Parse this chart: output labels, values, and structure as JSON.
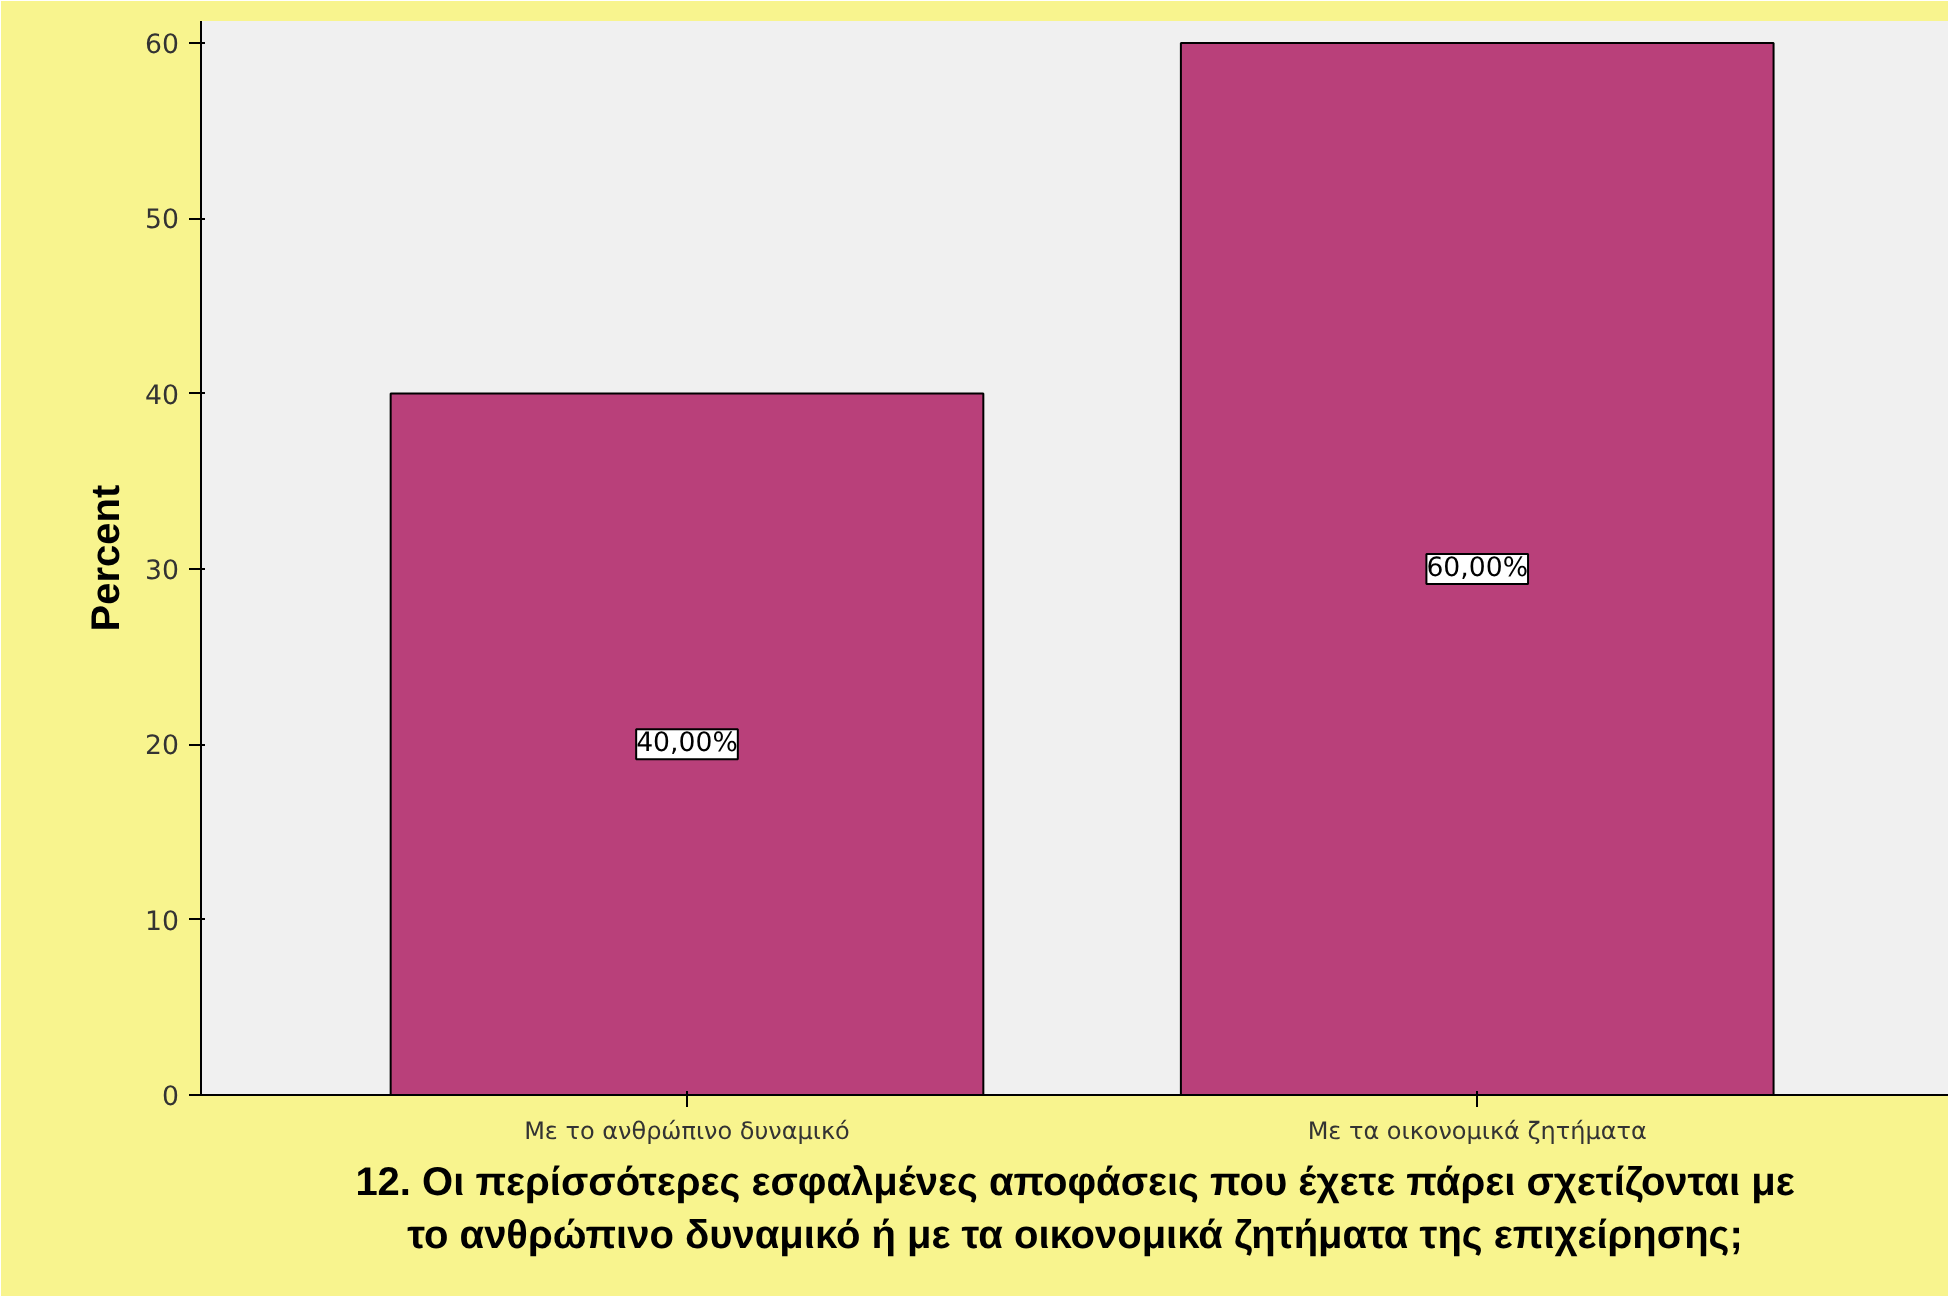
{
  "chart_data": {
    "type": "bar",
    "xlabel": "12. Οι περίσσότερες εσφαλμένες αποφάσεις που έχετε πάρει σχετίζονται με\nτο ανθρώπινο δυναμικό ή με τα οικονομικά ζητήματα της επιχείρησης;",
    "ylabel": "Percent",
    "categories": [
      "Με το ανθρώπινο δυναμικό",
      "Με τα οικονομικά ζητήματα"
    ],
    "values": [
      40,
      60
    ],
    "color": "#b9407a",
    "value_labels": [
      "40,00%",
      "60,00%"
    ],
    "ylim": [
      0,
      61.25
    ],
    "yticks": [
      0,
      10,
      20,
      30,
      40,
      50,
      60
    ],
    "grid": false
  }
}
